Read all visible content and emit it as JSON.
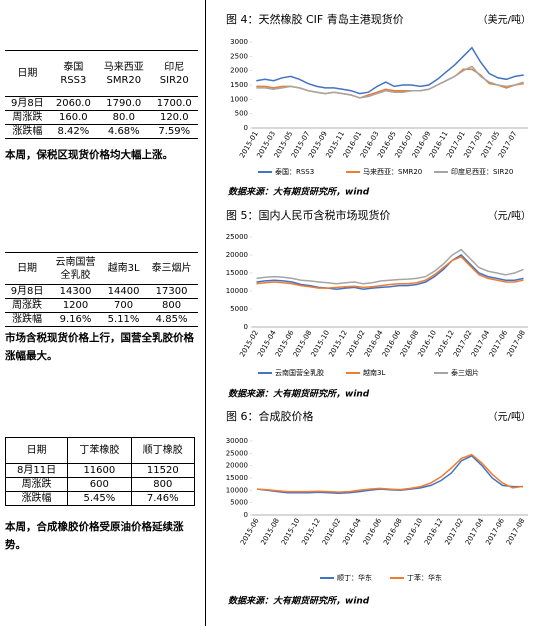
{
  "tables": [
    {
      "header": [
        "日期",
        "泰国\nRSS3",
        "马来西亚\nSMR20",
        "印尼\nSIR20"
      ],
      "rows": [
        [
          "9月8日",
          "2060.0",
          "1790.0",
          "1700.0"
        ],
        [
          "周涨跌",
          "160.0",
          "80.0",
          "120.0"
        ],
        [
          "涨跌幅",
          "8.42%",
          "4.68%",
          "7.59%"
        ]
      ],
      "note": "本周，保税区现货价格均大幅上涨。"
    },
    {
      "header": [
        "日期",
        "云南国营\n全乳胶",
        "越南3L",
        "泰三烟片"
      ],
      "rows": [
        [
          "9月8日",
          "14300",
          "14400",
          "17300"
        ],
        [
          "周涨跌",
          "1200",
          "700",
          "800"
        ],
        [
          "涨跌幅",
          "9.16%",
          "5.11%",
          "4.85%"
        ]
      ],
      "note": "市场含税现货价格上行，国营全乳胶价格涨幅最大。"
    },
    {
      "header": [
        "日期",
        "丁苯橡胶",
        "顺丁橡胶"
      ],
      "rows": [
        [
          "8月11日",
          "11600",
          "11520"
        ],
        [
          "周涨跌",
          "600",
          "800"
        ],
        [
          "涨跌幅",
          "5.45%",
          "7.46%"
        ]
      ],
      "note": "本周，合成橡胶价格受原油价格延续涨势。"
    }
  ],
  "chart_data": [
    {
      "type": "line",
      "title": "图 4：天然橡胶 CIF 青岛主港现货价",
      "unit": "（美元/吨）",
      "source": "数据来源：大有期货研究所，wind",
      "categories": [
        "2015-01",
        null,
        "2015-03",
        null,
        "2015-05",
        null,
        "2015-07",
        null,
        "2015-09",
        null,
        "2015-11",
        null,
        "2016-01",
        null,
        "2016-03",
        null,
        "2016-05",
        null,
        "2016-07",
        null,
        "2016-09",
        null,
        "2016-11",
        null,
        "2017-01",
        null,
        "2017-03",
        null,
        "2017-05",
        null,
        "2017-07",
        null
      ],
      "ylim": [
        0,
        3000
      ],
      "yticks": [
        0,
        500,
        1000,
        1500,
        2000,
        2500,
        3000
      ],
      "grid": false,
      "series": [
        {
          "name": "泰国：RSS3",
          "color": "#4472c4",
          "values": [
            1650,
            1700,
            1650,
            1750,
            1800,
            1700,
            1550,
            1450,
            1400,
            1400,
            1350,
            1300,
            1200,
            1250,
            1450,
            1600,
            1450,
            1500,
            1500,
            1450,
            1500,
            1700,
            1950,
            2200,
            2500,
            2800,
            2300,
            1900,
            1750,
            1700,
            1800,
            1850
          ]
        },
        {
          "name": "马来西亚：SMR20",
          "color": "#ed7d31",
          "values": [
            1450,
            1450,
            1400,
            1450,
            1450,
            1400,
            1300,
            1250,
            1200,
            1250,
            1200,
            1150,
            1050,
            1150,
            1250,
            1350,
            1300,
            1300,
            1300,
            1300,
            1350,
            1500,
            1650,
            1800,
            2050,
            2050,
            1850,
            1550,
            1500,
            1400,
            1500,
            1550
          ]
        },
        {
          "name": "印度尼西亚：SIR20",
          "color": "#a5a5a5",
          "values": [
            1400,
            1400,
            1350,
            1400,
            1450,
            1400,
            1300,
            1250,
            1200,
            1250,
            1200,
            1150,
            1050,
            1100,
            1200,
            1300,
            1250,
            1250,
            1300,
            1300,
            1350,
            1500,
            1650,
            1800,
            2000,
            2150,
            1800,
            1600,
            1500,
            1450,
            1500,
            1600
          ]
        }
      ]
    },
    {
      "type": "line",
      "title": "图 5：国内人民币含税市场现货价",
      "unit": "（元/吨）",
      "source": "数据来源：大有期货研究所，wind",
      "categories": [
        "2015-02",
        null,
        "2015-04",
        null,
        "2015-06",
        null,
        "2015-08",
        null,
        "2015-10",
        null,
        "2015-12",
        null,
        "2016-02",
        null,
        "2016-04",
        null,
        "2016-06",
        null,
        "2016-08",
        null,
        "2016-10",
        null,
        "2016-12",
        null,
        "2017-02",
        null,
        "2017-04",
        null,
        "2017-06",
        null,
        "2017-08"
      ],
      "ylim": [
        0,
        25000
      ],
      "yticks": [
        0,
        5000,
        10000,
        15000,
        20000,
        25000
      ],
      "grid": false,
      "series": [
        {
          "name": "云南国营全乳胶",
          "color": "#4472c4",
          "values": [
            12500,
            12800,
            13000,
            12800,
            12500,
            11800,
            11500,
            11000,
            10800,
            10500,
            10800,
            11000,
            10500,
            10800,
            11000,
            11200,
            11500,
            11500,
            11800,
            12500,
            14000,
            16000,
            18500,
            20000,
            17500,
            15000,
            14000,
            13500,
            13000,
            13000,
            13500
          ]
        },
        {
          "name": "越南3L",
          "color": "#ed7d31",
          "values": [
            12000,
            12300,
            12500,
            12300,
            12000,
            11500,
            11200,
            10800,
            10800,
            11000,
            11200,
            11300,
            11000,
            11200,
            11500,
            11800,
            12000,
            12000,
            12300,
            13000,
            14500,
            16500,
            18500,
            19500,
            17000,
            14500,
            13500,
            13000,
            12500,
            12500,
            13000
          ]
        },
        {
          "name": "泰三烟片",
          "color": "#a5a5a5",
          "values": [
            13500,
            13800,
            14000,
            13800,
            13500,
            13000,
            12800,
            12500,
            12300,
            12000,
            12300,
            12500,
            12000,
            12300,
            12800,
            13000,
            13200,
            13300,
            13500,
            14000,
            15500,
            17500,
            20000,
            21500,
            19000,
            16500,
            15500,
            15000,
            14500,
            15000,
            16000
          ]
        }
      ]
    },
    {
      "type": "line",
      "title": "图 6：合成胶价格",
      "unit": "（元/吨）",
      "source": "数据来源：大有期货研究所，wind",
      "categories": [
        "2015-06",
        null,
        "2015-08",
        null,
        "2015-10",
        null,
        "2015-12",
        null,
        "2016-02",
        null,
        "2016-04",
        null,
        "2016-06",
        null,
        "2016-08",
        null,
        "2016-10",
        null,
        "2016-12",
        null,
        "2017-02",
        null,
        "2017-04",
        null,
        "2017-06",
        null,
        "2017-08"
      ],
      "ylim": [
        0,
        30000
      ],
      "yticks": [
        0,
        5000,
        10000,
        15000,
        20000,
        25000,
        30000
      ],
      "grid": false,
      "series": [
        {
          "name": "顺丁：华东",
          "color": "#4472c4",
          "values": [
            10500,
            10000,
            9500,
            9000,
            9000,
            9000,
            9200,
            9000,
            8800,
            9000,
            9500,
            10000,
            10500,
            10200,
            10000,
            10500,
            11000,
            12000,
            14000,
            17000,
            22000,
            24000,
            20000,
            15000,
            12000,
            11500,
            11500
          ]
        },
        {
          "name": "丁苯：华东",
          "color": "#ed7d31",
          "values": [
            10500,
            10200,
            9800,
            9500,
            9500,
            9500,
            9600,
            9500,
            9300,
            9500,
            10000,
            10500,
            10800,
            10500,
            10300,
            10800,
            11500,
            13000,
            15500,
            19000,
            23000,
            24500,
            21000,
            16500,
            13000,
            11000,
            11600
          ]
        }
      ]
    }
  ]
}
